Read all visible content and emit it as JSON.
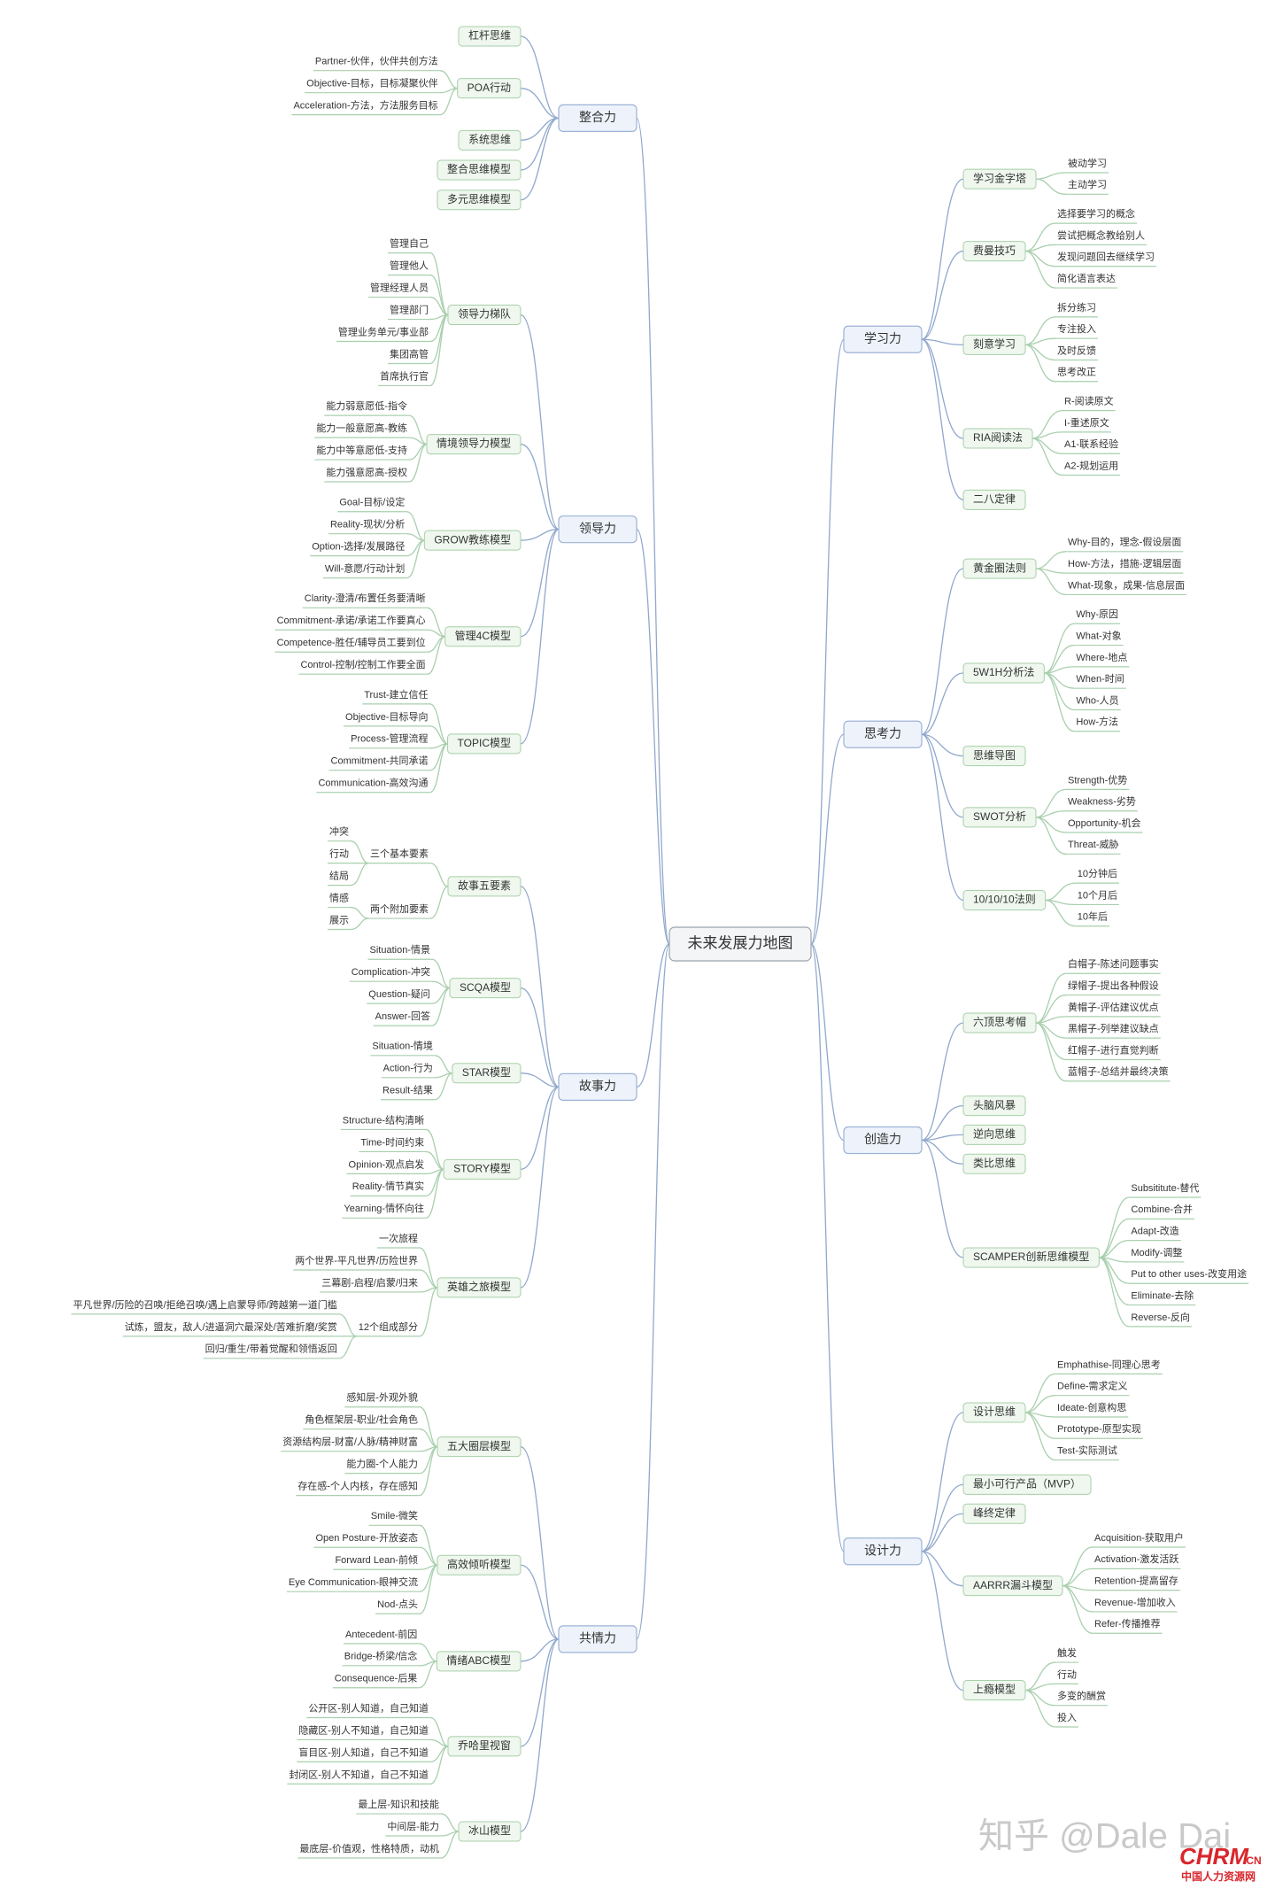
{
  "root": "未来发展力地图",
  "left": [
    {
      "label": "整合力",
      "children": [
        {
          "label": "杠杆思维"
        },
        {
          "label": "POA行动",
          "children": [
            {
              "label": "Partner-伙伴，伙伴共创方法"
            },
            {
              "label": "Objective-目标，目标凝聚伙伴"
            },
            {
              "label": "Acceleration-方法，方法服务目标"
            }
          ]
        },
        {
          "label": "系统思维"
        },
        {
          "label": "整合思维模型"
        },
        {
          "label": "多元思维模型"
        }
      ]
    },
    {
      "label": "领导力",
      "children": [
        {
          "label": "领导力梯队",
          "children": [
            {
              "label": "管理自己"
            },
            {
              "label": "管理他人"
            },
            {
              "label": "管理经理人员"
            },
            {
              "label": "管理部门"
            },
            {
              "label": "管理业务单元/事业部"
            },
            {
              "label": "集团高管"
            },
            {
              "label": "首席执行官"
            }
          ]
        },
        {
          "label": "情境领导力模型",
          "children": [
            {
              "label": "能力弱意愿低-指令"
            },
            {
              "label": "能力一般意愿高-教练"
            },
            {
              "label": "能力中等意愿低-支持"
            },
            {
              "label": "能力强意愿高-授权"
            }
          ]
        },
        {
          "label": "GROW教练模型",
          "children": [
            {
              "label": "Goal-目标/设定"
            },
            {
              "label": "Reality-现状/分析"
            },
            {
              "label": "Option-选择/发展路径"
            },
            {
              "label": "Will-意愿/行动计划"
            }
          ]
        },
        {
          "label": "管理4C模型",
          "children": [
            {
              "label": "Clarity-澄清/布置任务要清晰"
            },
            {
              "label": "Commitment-承诺/承诺工作要真心"
            },
            {
              "label": "Competence-胜任/辅导员工要到位"
            },
            {
              "label": "Control-控制/控制工作要全面"
            }
          ]
        },
        {
          "label": "TOPIC模型",
          "children": [
            {
              "label": "Trust-建立信任"
            },
            {
              "label": "Objective-目标导向"
            },
            {
              "label": "Process-管理流程"
            },
            {
              "label": "Commitment-共同承诺"
            },
            {
              "label": "Communication-高效沟通"
            }
          ]
        }
      ]
    },
    {
      "label": "故事力",
      "children": [
        {
          "label": "故事五要素",
          "children": [
            {
              "label": "三个基本要素",
              "children": [
                {
                  "label": "冲突"
                },
                {
                  "label": "行动"
                },
                {
                  "label": "结局"
                }
              ]
            },
            {
              "label": "两个附加要素",
              "children": [
                {
                  "label": "情感"
                },
                {
                  "label": "展示"
                }
              ]
            }
          ]
        },
        {
          "label": "SCQA模型",
          "children": [
            {
              "label": "Situation-情景"
            },
            {
              "label": "Complication-冲突"
            },
            {
              "label": "Question-疑问"
            },
            {
              "label": "Answer-回答"
            }
          ]
        },
        {
          "label": "STAR模型",
          "children": [
            {
              "label": "Situation-情境"
            },
            {
              "label": "Action-行为"
            },
            {
              "label": "Result-结果"
            }
          ]
        },
        {
          "label": "STORY模型",
          "children": [
            {
              "label": "Structure-结构清晰"
            },
            {
              "label": "Time-时间约束"
            },
            {
              "label": "Opinion-观点启发"
            },
            {
              "label": "Reality-情节真实"
            },
            {
              "label": "Yearning-情怀向往"
            }
          ]
        },
        {
          "label": "英雄之旅模型",
          "children": [
            {
              "label": "一次旅程"
            },
            {
              "label": "两个世界-平凡世界/历险世界"
            },
            {
              "label": "三幕剧-启程/启蒙/归来"
            },
            {
              "label": "12个组成部分",
              "children": [
                {
                  "label": "平凡世界/历险的召唤/拒绝召唤/遇上启蒙导师/跨越第一道门槛"
                },
                {
                  "label": "试炼，盟友，敌人/进逼洞穴最深处/苦难折磨/奖赏"
                },
                {
                  "label": "回归/重生/带着觉醒和领悟返回"
                }
              ]
            }
          ]
        }
      ]
    },
    {
      "label": "共情力",
      "children": [
        {
          "label": "五大圈层模型",
          "children": [
            {
              "label": "感知层-外观外貌"
            },
            {
              "label": "角色框架层-职业/社会角色"
            },
            {
              "label": "资源结构层-财富/人脉/精神财富"
            },
            {
              "label": "能力圈-个人能力"
            },
            {
              "label": "存在感-个人内核，存在感知"
            }
          ]
        },
        {
          "label": "高效倾听模型",
          "children": [
            {
              "label": "Smile-微笑"
            },
            {
              "label": "Open Posture-开放姿态"
            },
            {
              "label": "Forward Lean-前倾"
            },
            {
              "label": "Eye Communication-眼神交流"
            },
            {
              "label": "Nod-点头"
            }
          ]
        },
        {
          "label": "情绪ABC模型",
          "children": [
            {
              "label": "Antecedent-前因"
            },
            {
              "label": "Bridge-桥梁/信念"
            },
            {
              "label": "Consequence-后果"
            }
          ]
        },
        {
          "label": "乔哈里视窗",
          "children": [
            {
              "label": "公开区-别人知道，自己知道"
            },
            {
              "label": "隐藏区-别人不知道，自己知道"
            },
            {
              "label": "盲目区-别人知道，自己不知道"
            },
            {
              "label": "封闭区-别人不知道，自己不知道"
            }
          ]
        },
        {
          "label": "冰山模型",
          "children": [
            {
              "label": "最上层-知识和技能"
            },
            {
              "label": "中间层-能力"
            },
            {
              "label": "最底层-价值观，性格特质，动机"
            }
          ]
        }
      ]
    }
  ],
  "right": [
    {
      "label": "学习力",
      "children": [
        {
          "label": "学习金字塔",
          "children": [
            {
              "label": "被动学习"
            },
            {
              "label": "主动学习"
            }
          ]
        },
        {
          "label": "费曼技巧",
          "children": [
            {
              "label": "选择要学习的概念"
            },
            {
              "label": "尝试把概念教给别人"
            },
            {
              "label": "发现问题回去继续学习"
            },
            {
              "label": "简化语言表达"
            }
          ]
        },
        {
          "label": "刻意学习",
          "children": [
            {
              "label": "拆分练习"
            },
            {
              "label": "专注投入"
            },
            {
              "label": "及时反馈"
            },
            {
              "label": "思考改正"
            }
          ]
        },
        {
          "label": "RIA阅读法",
          "children": [
            {
              "label": "R-阅读原文"
            },
            {
              "label": "I-重述原文"
            },
            {
              "label": "A1-联系经验"
            },
            {
              "label": "A2-规划运用"
            }
          ]
        },
        {
          "label": "二八定律"
        }
      ]
    },
    {
      "label": "思考力",
      "children": [
        {
          "label": "黄金圈法则",
          "children": [
            {
              "label": "Why-目的，理念-假设层面"
            },
            {
              "label": "How-方法，措施-逻辑层面"
            },
            {
              "label": "What-现象，成果-信息层面"
            }
          ]
        },
        {
          "label": "5W1H分析法",
          "children": [
            {
              "label": "Why-原因"
            },
            {
              "label": "What-对象"
            },
            {
              "label": "Where-地点"
            },
            {
              "label": "When-时间"
            },
            {
              "label": "Who-人员"
            },
            {
              "label": "How-方法"
            }
          ]
        },
        {
          "label": "思维导图"
        },
        {
          "label": "SWOT分析",
          "children": [
            {
              "label": "Strength-优势"
            },
            {
              "label": "Weakness-劣势"
            },
            {
              "label": "Opportunity-机会"
            },
            {
              "label": "Threat-威胁"
            }
          ]
        },
        {
          "label": "10/10/10法则",
          "children": [
            {
              "label": "10分钟后"
            },
            {
              "label": "10个月后"
            },
            {
              "label": "10年后"
            }
          ]
        }
      ]
    },
    {
      "label": "创造力",
      "children": [
        {
          "label": "六顶思考帽",
          "children": [
            {
              "label": "白帽子-陈述问题事实"
            },
            {
              "label": "绿帽子-提出各种假设"
            },
            {
              "label": "黄帽子-评估建议优点"
            },
            {
              "label": "黑帽子-列举建议缺点"
            },
            {
              "label": "红帽子-进行直觉判断"
            },
            {
              "label": "蓝帽子-总结并最终决策"
            }
          ]
        },
        {
          "label": "头脑风暴"
        },
        {
          "label": "逆向思维"
        },
        {
          "label": "类比思维"
        },
        {
          "label": "SCAMPER创新思维模型",
          "children": [
            {
              "label": "Subsititute-替代"
            },
            {
              "label": "Combine-合并"
            },
            {
              "label": "Adapt-改造"
            },
            {
              "label": "Modify-调整"
            },
            {
              "label": "Put to other uses-改变用途"
            },
            {
              "label": "Eliminate-去除"
            },
            {
              "label": "Reverse-反向"
            }
          ]
        }
      ]
    },
    {
      "label": "设计力",
      "children": [
        {
          "label": "设计思维",
          "children": [
            {
              "label": "Emphathise-同理心思考"
            },
            {
              "label": "Define-需求定义"
            },
            {
              "label": "Ideate-创意构思"
            },
            {
              "label": "Prototype-原型实现"
            },
            {
              "label": "Test-实际测试"
            }
          ]
        },
        {
          "label": "最小可行产品（MVP）"
        },
        {
          "label": "峰终定律"
        },
        {
          "label": "AARRR漏斗模型",
          "children": [
            {
              "label": "Acquisition-获取用户"
            },
            {
              "label": "Activation-激发活跃"
            },
            {
              "label": "Retention-提高留存"
            },
            {
              "label": "Revenue-增加收入"
            },
            {
              "label": "Refer-传播推荐"
            }
          ]
        },
        {
          "label": "上瘾模型",
          "children": [
            {
              "label": "触发"
            },
            {
              "label": "行动"
            },
            {
              "label": "多变的酬赏"
            },
            {
              "label": "投入"
            }
          ]
        }
      ]
    }
  ],
  "watermark": {
    "zhihu": "知乎 @Dale Dai",
    "brand": "CHRM",
    "brand_suffix": ".CN",
    "brand_cn": "中国人力资源网"
  }
}
